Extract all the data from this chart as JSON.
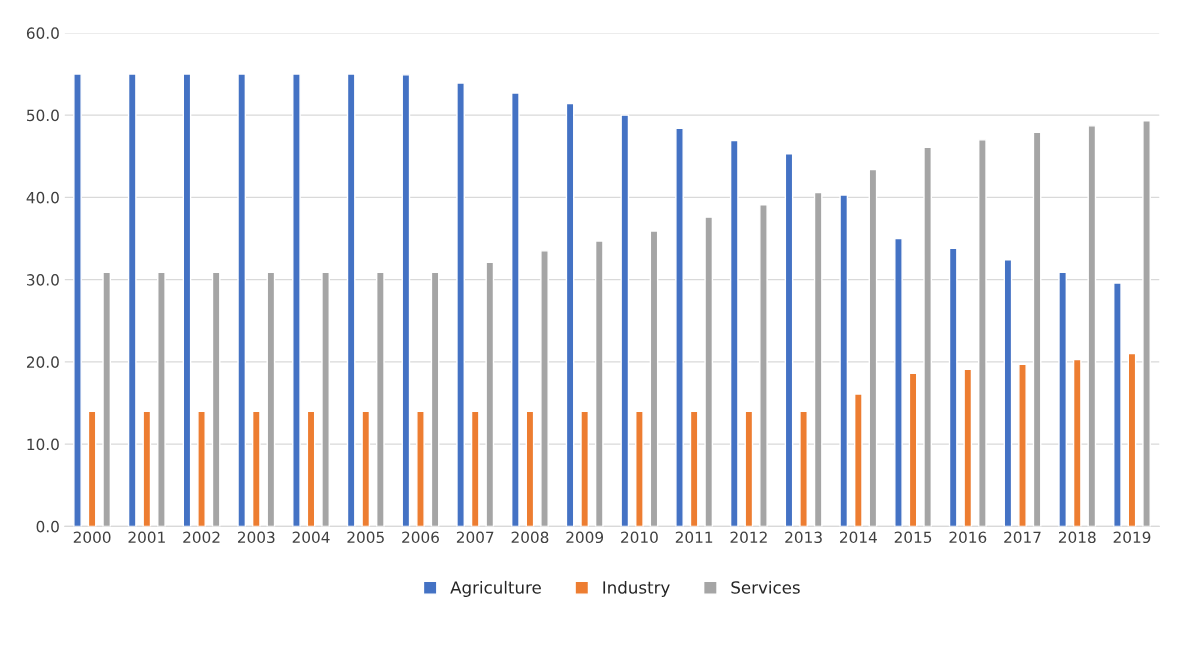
{
  "chart_data": {
    "type": "bar",
    "categories": [
      "2000",
      "2001",
      "2002",
      "2003",
      "2004",
      "2005",
      "2006",
      "2007",
      "2008",
      "2009",
      "2010",
      "2011",
      "2012",
      "2013",
      "2014",
      "2015",
      "2016",
      "2017",
      "2018",
      "2019"
    ],
    "series": [
      {
        "name": "Agriculture",
        "color": "#4472c4",
        "values": [
          55.0,
          55.0,
          55.0,
          55.0,
          55.0,
          55.0,
          54.9,
          53.9,
          52.7,
          51.4,
          50.0,
          48.4,
          46.9,
          45.3,
          40.3,
          35.0,
          33.8,
          32.4,
          30.9,
          29.6
        ]
      },
      {
        "name": "Industry",
        "color": "#ed7d31",
        "values": [
          14.0,
          14.0,
          14.0,
          14.0,
          14.0,
          14.0,
          14.0,
          14.0,
          14.0,
          14.0,
          14.0,
          14.0,
          14.0,
          14.0,
          16.1,
          18.6,
          19.1,
          19.7,
          20.3,
          21.0
        ]
      },
      {
        "name": "Services",
        "color": "#a5a5a5",
        "values": [
          30.9,
          30.9,
          30.9,
          30.9,
          30.9,
          30.9,
          30.9,
          32.1,
          33.5,
          34.7,
          35.9,
          37.6,
          39.1,
          40.6,
          43.4,
          46.1,
          47.0,
          47.9,
          48.7,
          49.3
        ]
      }
    ],
    "ylim": [
      0,
      60
    ],
    "yticks": [
      {
        "value": 0,
        "label": "0.0"
      },
      {
        "value": 10,
        "label": "10.0"
      },
      {
        "value": 20,
        "label": "20.0"
      },
      {
        "value": 30,
        "label": "30.0"
      },
      {
        "value": 40,
        "label": "40.0"
      },
      {
        "value": 50,
        "label": "50.0"
      },
      {
        "value": 60,
        "label": "60.0"
      }
    ],
    "grid": "y",
    "legend": "bottom"
  }
}
